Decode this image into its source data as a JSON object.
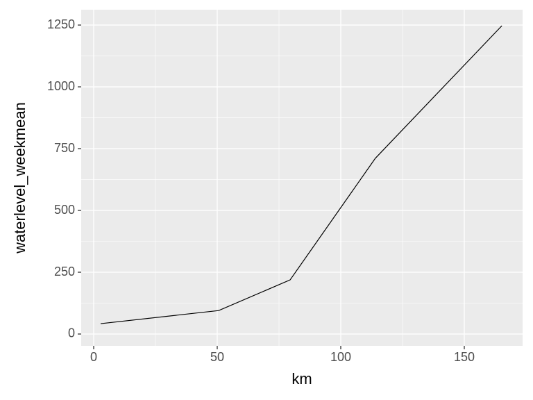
{
  "chart_data": {
    "type": "line",
    "x_label": "km",
    "y_label": "waterlevel_weekmean",
    "x": [
      2.8,
      50.6,
      79.5,
      114,
      165.2
    ],
    "series": [
      {
        "color": "#000000",
        "values": [
          42,
          95,
          219,
          711,
          1247
        ]
      }
    ],
    "xlim": [
      -5.06,
      173.6
    ],
    "ylim": [
      -47.8,
      1312
    ],
    "xticks": [
      0,
      50,
      100,
      150
    ],
    "yticks": [
      0,
      250,
      500,
      750,
      1000,
      1250
    ],
    "xminor": [
      25,
      75,
      125
    ],
    "yminor": [
      125,
      375,
      625,
      875,
      1125
    ],
    "grid": true,
    "panel_color": "#ebebeb"
  }
}
